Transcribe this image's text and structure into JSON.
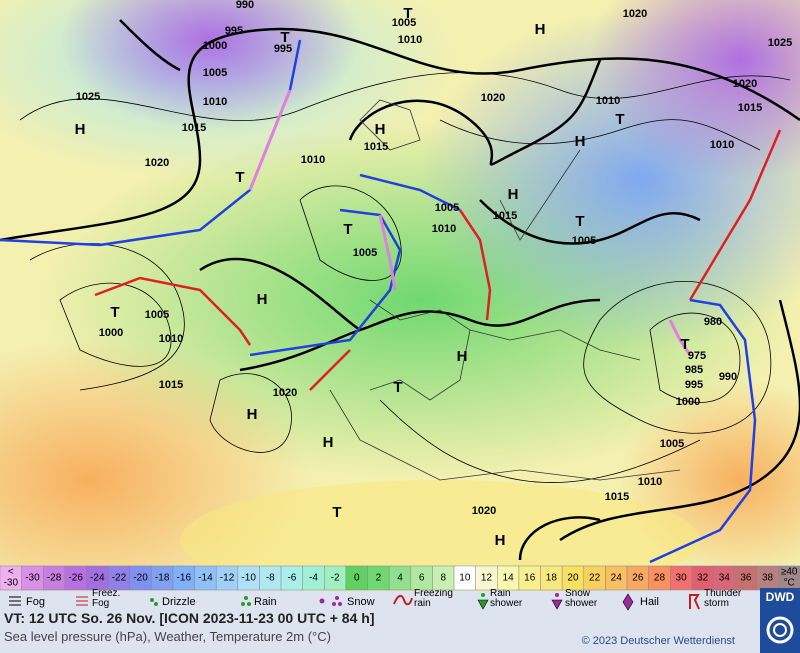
{
  "map": {
    "pressure_labels": [
      "H",
      "T",
      "H",
      "H",
      "T",
      "H",
      "H",
      "H",
      "T",
      "T",
      "H",
      "T",
      "T",
      "T",
      "H",
      "T",
      "H",
      "T",
      "H",
      "T",
      "990",
      "995",
      "1005",
      "1010",
      "1020",
      "1025",
      "1000",
      "995",
      "1005",
      "1025",
      "1010",
      "1020",
      "1010",
      "1015",
      "1020",
      "1015",
      "1015",
      "1010",
      "1020",
      "1010",
      "1005",
      "1015",
      "1010",
      "1005",
      "1005",
      "1005",
      "1000",
      "1010",
      "980",
      "975",
      "985",
      "990",
      "995",
      "1000",
      "1015",
      "1020",
      "1005",
      "1010",
      "1015",
      "1020"
    ]
  },
  "scale": {
    "low": [
      "<",
      "-30"
    ],
    "steps": [
      {
        "label": "-30",
        "color": "#d890e8"
      },
      {
        "label": "-28",
        "color": "#c880e0"
      },
      {
        "label": "-26",
        "color": "#b870e0"
      },
      {
        "label": "-24",
        "color": "#a070e0"
      },
      {
        "label": "-22",
        "color": "#9080e8"
      },
      {
        "label": "-20",
        "color": "#8090f0"
      },
      {
        "label": "-18",
        "color": "#80a0f0"
      },
      {
        "label": "-16",
        "color": "#80b0f8"
      },
      {
        "label": "-14",
        "color": "#90c0f8"
      },
      {
        "label": "-12",
        "color": "#a0d0f8"
      },
      {
        "label": "-10",
        "color": "#b0e0f8"
      },
      {
        "label": "-8",
        "color": "#b0e8f0"
      },
      {
        "label": "-6",
        "color": "#a8f0e8"
      },
      {
        "label": "-4",
        "color": "#a0f0d8"
      },
      {
        "label": "-2",
        "color": "#a0f0c0"
      },
      {
        "label": "0",
        "color": "#60d060"
      },
      {
        "label": "2",
        "color": "#70d870"
      },
      {
        "label": "4",
        "color": "#90e090"
      },
      {
        "label": "6",
        "color": "#b0e8a0"
      },
      {
        "label": "8",
        "color": "#c8f0b0"
      },
      {
        "label": "10",
        "color": "#ffffff"
      },
      {
        "label": "12",
        "color": "#f8f8d0"
      },
      {
        "label": "14",
        "color": "#f8f8b0"
      },
      {
        "label": "16",
        "color": "#f8f090"
      },
      {
        "label": "18",
        "color": "#f8e880"
      },
      {
        "label": "20",
        "color": "#f8e060"
      },
      {
        "label": "22",
        "color": "#f8d060"
      },
      {
        "label": "24",
        "color": "#f8c060"
      },
      {
        "label": "26",
        "color": "#f8a860"
      },
      {
        "label": "28",
        "color": "#f89060"
      },
      {
        "label": "30",
        "color": "#f07070"
      },
      {
        "label": "32",
        "color": "#e06070"
      },
      {
        "label": "34",
        "color": "#d86878"
      },
      {
        "label": "36",
        "color": "#c87070"
      },
      {
        "label": "38",
        "color": "#b88080"
      }
    ],
    "high": [
      "≥40",
      "°C"
    ]
  },
  "legend": [
    "Fog",
    "Freez. Fog",
    "Drizzle",
    "Rain",
    "Snow",
    "Freezing rain",
    "Rain shower",
    "Snow shower",
    "Hail",
    "Thunder storm"
  ],
  "footer": {
    "valid": "VT: 12 UTC So.  26 Nov. [ICON 2023-11-23  00 UTC + 84 h]",
    "description": "Sea level pressure (hPa), Weather, Temperature 2m (°C)",
    "copyright": "© 2023 Deutscher Wetterdienst",
    "logo": "DWD"
  }
}
